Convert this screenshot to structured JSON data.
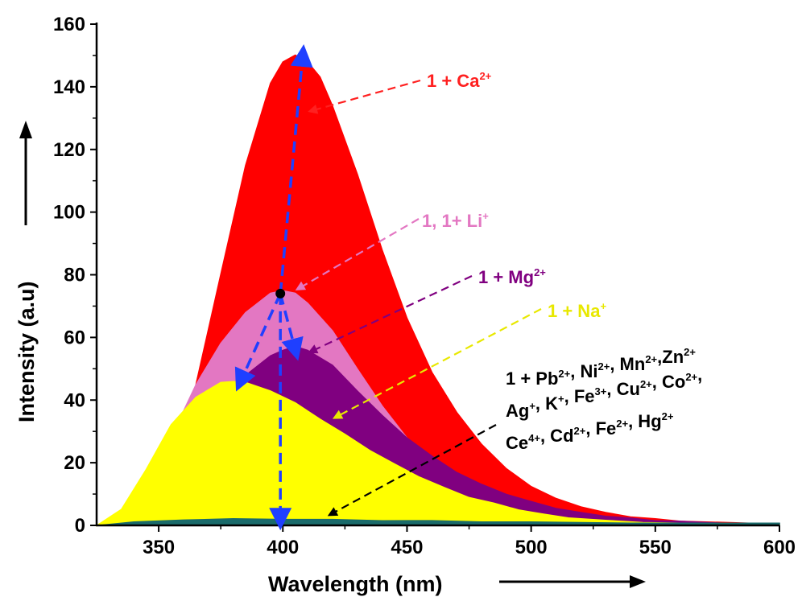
{
  "chart_data": {
    "type": "area",
    "xlabel": "Wavelength (nm)",
    "ylabel": "Intensity (a.u)",
    "xlim": [
      325,
      600
    ],
    "ylim": [
      0,
      160
    ],
    "x_ticks": [
      350,
      400,
      450,
      500,
      550,
      600
    ],
    "y_ticks": [
      0,
      20,
      40,
      60,
      80,
      100,
      120,
      140,
      160
    ],
    "grid": false,
    "series": [
      {
        "name": "1 + Ca2+",
        "color": "#ff0000",
        "x": [
          325,
          335,
          345,
          355,
          365,
          375,
          385,
          395,
          400,
          405,
          410,
          415,
          420,
          430,
          440,
          450,
          460,
          470,
          480,
          490,
          500,
          510,
          520,
          530,
          540,
          550,
          560,
          580,
          600
        ],
        "y": [
          0,
          2,
          8,
          20,
          45,
          80,
          115,
          141,
          148,
          150,
          148,
          143,
          134,
          112,
          88,
          66,
          49,
          36,
          26,
          18,
          12.5,
          8.5,
          6,
          4,
          2.8,
          2,
          1.4,
          0.8,
          0.5
        ]
      },
      {
        "name": "1, 1+ Li+",
        "color": "#e377c2",
        "x": [
          325,
          335,
          345,
          355,
          365,
          375,
          385,
          395,
          400,
          405,
          410,
          420,
          430,
          440,
          450,
          460,
          470,
          480,
          490,
          500,
          510,
          520,
          530,
          540,
          550,
          560,
          580,
          600
        ],
        "y": [
          0,
          3,
          12,
          28,
          45,
          58,
          68,
          74,
          75,
          74,
          71,
          62,
          50,
          38,
          28,
          20,
          14,
          10,
          7,
          5,
          3.5,
          2.5,
          1.8,
          1.2,
          0.9,
          0.6,
          0.4,
          0.2
        ]
      },
      {
        "name": "1 + Mg2+",
        "color": "#800080",
        "x": [
          325,
          335,
          345,
          355,
          365,
          375,
          385,
          395,
          400,
          405,
          410,
          420,
          430,
          440,
          450,
          460,
          470,
          480,
          490,
          500,
          510,
          520,
          530,
          540,
          550,
          560,
          580,
          600
        ],
        "y": [
          0,
          1,
          4,
          12,
          25,
          38,
          48,
          54,
          56,
          57,
          56,
          51,
          43,
          35,
          28,
          22,
          17,
          13,
          10,
          7.5,
          5.5,
          4,
          3,
          2.2,
          1.6,
          1.2,
          0.7,
          0.4
        ]
      },
      {
        "name": "1 + Na+",
        "color": "#ffff00",
        "x": [
          325,
          335,
          345,
          355,
          365,
          375,
          380,
          385,
          395,
          405,
          415,
          425,
          435,
          445,
          455,
          465,
          475,
          485,
          495,
          505,
          515,
          530,
          545,
          560,
          580,
          600
        ],
        "y": [
          0,
          5,
          18,
          32,
          41,
          45.5,
          46,
          45.5,
          43,
          39,
          34,
          29,
          24,
          19.5,
          15.5,
          12,
          9,
          7,
          5,
          3.5,
          2.5,
          1.5,
          1,
          0.6,
          0.3,
          0.2
        ]
      },
      {
        "name": "1 + Pb2+, Ni2+, Mn2+, Zn2+, Ag+, K+, Fe3+, Cu2+, Co2+, Ce4+, Cd2+, Fe2+, Hg2+",
        "color": "#1a6b6b",
        "x": [
          325,
          340,
          360,
          380,
          400,
          420,
          440,
          460,
          480,
          500,
          540,
          600
        ],
        "y": [
          0,
          1,
          1.8,
          2,
          2,
          1.8,
          1.6,
          1.4,
          1.2,
          1,
          0.8,
          0.6
        ]
      }
    ],
    "annotations": [
      {
        "base": "1 + Ca",
        "sup": "2+",
        "color": "#ff2020",
        "target_x": 410,
        "target_y": 132
      },
      {
        "base": "1, 1+ Li",
        "sup": "+",
        "color": "#e377c2",
        "target_x": 405,
        "target_y": 75
      },
      {
        "base": "1 + Mg",
        "sup": "2+",
        "color": "#800080",
        "target_x": 410,
        "target_y": 55
      },
      {
        "base": "1 + Na",
        "sup": "+",
        "color": "#e8e800",
        "target_x": 420,
        "target_y": 34
      },
      {
        "color": "#000000",
        "target_x": 418,
        "target_y": 3,
        "lines": [
          [
            [
              "1 + Pb",
              "2+"
            ],
            [
              ", Ni",
              "2+"
            ],
            [
              ", Mn",
              "2+"
            ],
            [
              ",Zn",
              "2+"
            ]
          ],
          [
            [
              "Ag",
              "+"
            ],
            [
              ", K",
              "+"
            ],
            [
              ", Fe",
              "3+"
            ],
            [
              ", Cu",
              "2+"
            ],
            [
              ", Co",
              "2+"
            ],
            [
              ",",
              ""
            ]
          ],
          [
            [
              "Ce",
              "4+"
            ],
            [
              ", Cd",
              "2+"
            ],
            [
              ", Fe",
              "2+"
            ],
            [
              ", Hg",
              "2+"
            ]
          ]
        ]
      }
    ]
  }
}
